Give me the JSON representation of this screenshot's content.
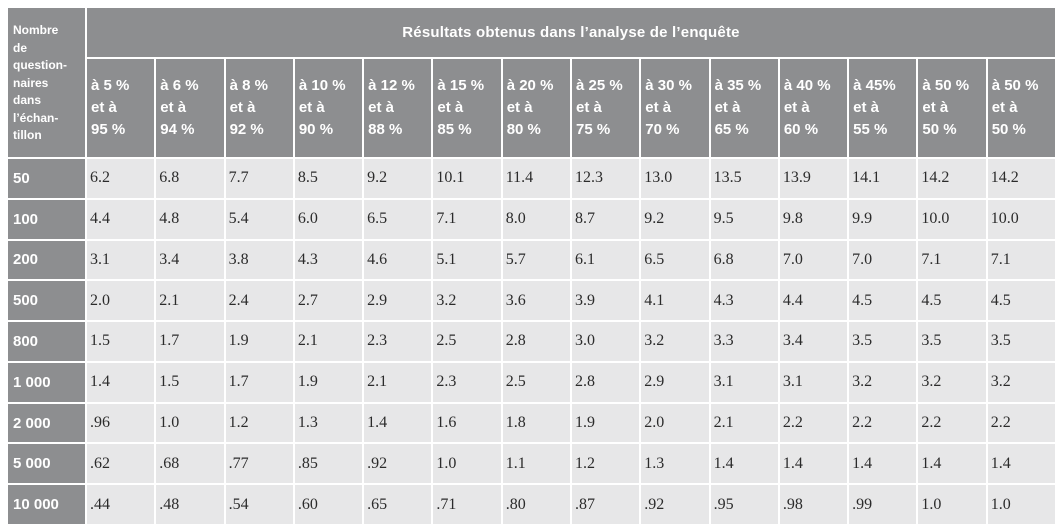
{
  "colors": {
    "header_bg": "#8d8e90",
    "cell_bg": "#e7e7e8",
    "header_text": "#ffffff",
    "cell_text": "#2b2b2b"
  },
  "table": {
    "corner_lines": [
      "Nombre",
      "de",
      "question-",
      "naires",
      "dans",
      "l’échan-",
      "tillon"
    ],
    "title": "Résultats obtenus dans l’analyse de l’enquête",
    "column_headers": [
      [
        "à 5 %",
        "et à",
        "95 %"
      ],
      [
        "à 6 %",
        "et à",
        "94 %"
      ],
      [
        "à 8 %",
        "et à",
        "92 %"
      ],
      [
        "à 10 %",
        "et à",
        "90 %"
      ],
      [
        "à 12 %",
        "et à",
        "88 %"
      ],
      [
        "à 15 %",
        "et à",
        "85 %"
      ],
      [
        "à 20 %",
        "et à",
        "80 %"
      ],
      [
        "à 25 %",
        "et à",
        "75 %"
      ],
      [
        "à 30 %",
        "et à",
        "70 %"
      ],
      [
        "à 35 %",
        "et à",
        "65 %"
      ],
      [
        "à 40 %",
        "et à",
        "60 %"
      ],
      [
        "à 45%",
        "et à",
        "55 %"
      ],
      [
        "à 50 %",
        "et à",
        "50 %"
      ],
      [
        "à 50 %",
        "et à",
        "50 %"
      ]
    ],
    "rows": [
      {
        "label": "50",
        "values": [
          "6.2",
          "6.8",
          "7.7",
          "8.5",
          "9.2",
          "10.1",
          "11.4",
          "12.3",
          "13.0",
          "13.5",
          "13.9",
          "14.1",
          "14.2",
          "14.2"
        ]
      },
      {
        "label": "100",
        "values": [
          "4.4",
          "4.8",
          "5.4",
          "6.0",
          "6.5",
          "7.1",
          "8.0",
          "8.7",
          "9.2",
          "9.5",
          "9.8",
          "9.9",
          "10.0",
          "10.0"
        ]
      },
      {
        "label": "200",
        "values": [
          "3.1",
          "3.4",
          "3.8",
          "4.3",
          "4.6",
          "5.1",
          "5.7",
          "6.1",
          "6.5",
          "6.8",
          "7.0",
          "7.0",
          "7.1",
          "7.1"
        ]
      },
      {
        "label": "500",
        "values": [
          "2.0",
          "2.1",
          "2.4",
          "2.7",
          "2.9",
          "3.2",
          "3.6",
          "3.9",
          "4.1",
          "4.3",
          "4.4",
          "4.5",
          "4.5",
          "4.5"
        ]
      },
      {
        "label": "800",
        "values": [
          "1.5",
          "1.7",
          "1.9",
          "2.1",
          "2.3",
          "2.5",
          "2.8",
          "3.0",
          "3.2",
          "3.3",
          "3.4",
          "3.5",
          "3.5",
          "3.5"
        ]
      },
      {
        "label": "1 000",
        "values": [
          "1.4",
          "1.5",
          "1.7",
          "1.9",
          "2.1",
          "2.3",
          "2.5",
          "2.8",
          "2.9",
          "3.1",
          "3.1",
          "3.2",
          "3.2",
          "3.2"
        ]
      },
      {
        "label": "2 000",
        "values": [
          ".96",
          "1.0",
          "1.2",
          "1.3",
          "1.4",
          "1.6",
          "1.8",
          "1.9",
          "2.0",
          "2.1",
          "2.2",
          "2.2",
          "2.2",
          "2.2"
        ]
      },
      {
        "label": "5 000",
        "values": [
          ".62",
          ".68",
          ".77",
          ".85",
          ".92",
          "1.0",
          "1.1",
          "1.2",
          "1.3",
          "1.4",
          "1.4",
          "1.4",
          "1.4",
          "1.4"
        ]
      },
      {
        "label": "10 000",
        "values": [
          ".44",
          ".48",
          ".54",
          ".60",
          ".65",
          ".71",
          ".80",
          ".87",
          ".92",
          ".95",
          ".98",
          ".99",
          "1.0",
          "1.0"
        ]
      }
    ]
  }
}
